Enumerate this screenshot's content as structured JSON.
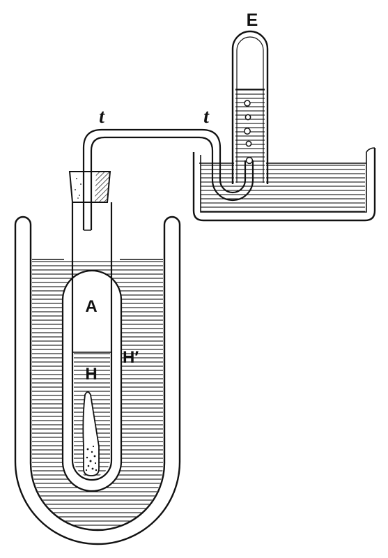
{
  "labels": {
    "eudiometer": "E",
    "tube_left": "t",
    "tube_right": "t",
    "inner_air": "A",
    "inner_liquid": "H",
    "outer_liquid": "H′"
  },
  "colors": {
    "ink": "#111111",
    "background": "#ffffff"
  }
}
